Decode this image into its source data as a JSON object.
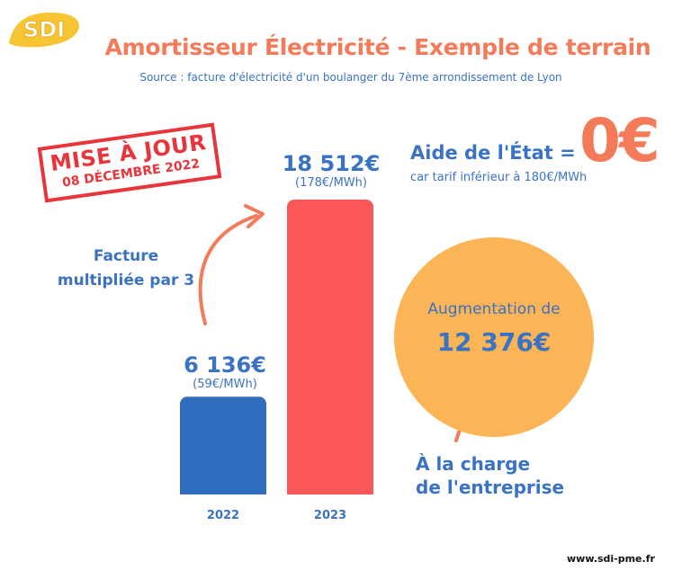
{
  "logo": {
    "text": "SDI"
  },
  "title": "Amortisseur Électricité - Exemple de terrain",
  "subtitle": "Source : facture d'électricité d'un boulanger du 7ème arrondissement de Lyon",
  "stamp": {
    "line1": "MISE À JOUR",
    "line2": "08 DÉCEMBRE 2022"
  },
  "facture_note": [
    "Facture",
    "multipliée par 3"
  ],
  "aide": {
    "label": "Aide de l'État =",
    "value": "0€",
    "note": "car tarif inférieur à 180€/MWh"
  },
  "circle": {
    "label": "Augmentation de",
    "value": "12 376€"
  },
  "charge_note": [
    "À la charge",
    "de l'entreprise"
  ],
  "footer": {
    "url": "www.sdi-pme.fr"
  },
  "colors": {
    "accent_orange": "#f47b5a",
    "blue": "#3a72c4",
    "bar_2022": "#2f6ebf",
    "bar_2023": "#fb5758",
    "circle": "#fbb556",
    "stamp_red": "#e8353b"
  },
  "chart_data": {
    "type": "bar",
    "categories": [
      "2022",
      "2023"
    ],
    "values": [
      6136,
      18512
    ],
    "value_labels": [
      "6 136€",
      "18 512€"
    ],
    "sub_labels": [
      "(59€/MWh)",
      "(178€/MWh)"
    ],
    "bar_colors": [
      "#2f6ebf",
      "#fb5758"
    ],
    "title": "",
    "xlabel": "",
    "ylabel": "",
    "ylim": [
      0,
      18512
    ]
  }
}
